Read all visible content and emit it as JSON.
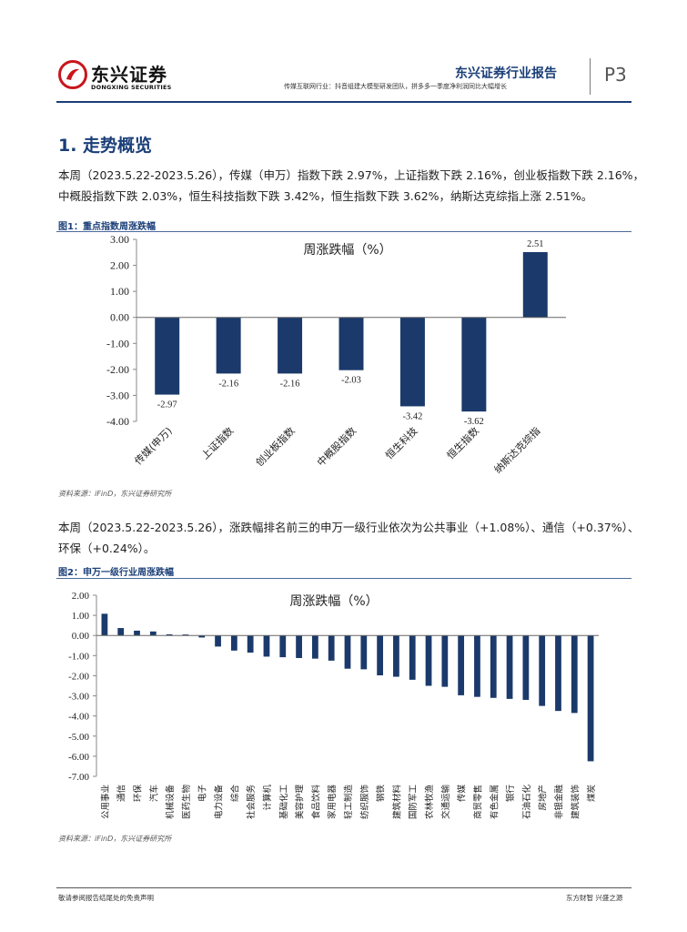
{
  "header": {
    "logo_cn": "东兴证券",
    "logo_en": "DONGXING SECURITIES",
    "report_type": "东兴证券行业报告",
    "subtitle": "传媒互联网行业：抖音组建大模型研发团队，拼多多一季度净利润同比大幅增长",
    "page": "P3"
  },
  "section": {
    "title": "1. 走势概览"
  },
  "paragraph1": {
    "line1": "本周（2023.5.22-2023.5.26），传媒（申万）指数下跌 2.97%，上证指数下跌 2.16%，创业板指数下跌 2.16%，",
    "line2": "中概股指数下跌 2.03%，恒生科技指数下跌 3.42%，恒生指数下跌 3.62%，纳斯达克综指上涨 2.51%。"
  },
  "figure1": {
    "caption": "图1：重点指数周涨跌幅",
    "source": "资料来源：iFinD，东兴证券研究所"
  },
  "paragraph2": {
    "line1": "本周（2023.5.22-2023.5.26），涨跌幅排名前三的申万一级行业依次为公共事业（+1.08%）、通信（+0.37%）、",
    "line2": "环保（+0.24%）。"
  },
  "figure2": {
    "caption": "图2：申万一级行业周涨跌幅",
    "source": "资料来源：iFinD，东兴证券研究所"
  },
  "chart_data": [
    {
      "type": "bar",
      "title": "周涨跌幅（%）",
      "categories": [
        "传媒(申万)",
        "上证指数",
        "创业板指数",
        "中概股指数",
        "恒生科技",
        "恒生指数",
        "纳斯达克综指"
      ],
      "values": [
        -2.97,
        -2.16,
        -2.16,
        -2.03,
        -3.42,
        -3.62,
        2.51
      ],
      "value_labels": [
        "-2.97",
        "-2.16",
        "-2.16",
        "-2.03",
        "-3.42",
        "-3.62",
        "2.51"
      ],
      "yticks": [
        "3.00",
        "2.00",
        "1.00",
        "0.00",
        "-1.00",
        "-2.00",
        "-3.00",
        "-4.00"
      ],
      "ylim": [
        -4,
        3
      ],
      "xlabel": "",
      "ylabel": "",
      "color": "#1b3a6b"
    },
    {
      "type": "bar",
      "title": "周涨跌幅（%）",
      "categories": [
        "公用事业",
        "通信",
        "环保",
        "汽车",
        "机械设备",
        "医药生物",
        "电子",
        "电力设备",
        "综合",
        "社会服务",
        "计算机",
        "基础化工",
        "美容护理",
        "食品饮料",
        "家用电器",
        "轻工制造",
        "纺织服饰",
        "钢铁",
        "建筑材料",
        "国防军工",
        "农林牧渔",
        "交通运输",
        "传媒",
        "商贸零售",
        "有色金属",
        "银行",
        "石油石化",
        "房地产",
        "非银金融",
        "建筑装饰",
        "煤炭"
      ],
      "values": [
        1.08,
        0.37,
        0.24,
        0.2,
        0.06,
        0.05,
        -0.1,
        -0.55,
        -0.75,
        -0.85,
        -1.05,
        -1.08,
        -1.12,
        -1.15,
        -1.25,
        -1.65,
        -1.68,
        -1.98,
        -2.05,
        -2.2,
        -2.5,
        -2.55,
        -2.97,
        -3.05,
        -3.1,
        -3.15,
        -3.2,
        -3.5,
        -3.75,
        -3.85,
        -6.25
      ],
      "yticks": [
        "2.00",
        "1.00",
        "0.00",
        "-1.00",
        "-2.00",
        "-3.00",
        "-4.00",
        "-5.00",
        "-6.00",
        "-7.00"
      ],
      "ylim": [
        -7,
        2
      ],
      "xlabel": "",
      "ylabel": "",
      "color": "#1b3a6b"
    }
  ],
  "footer": {
    "left": "敬请参阅报告结尾处的免责声明",
    "right": "东方财智 兴盛之源"
  }
}
